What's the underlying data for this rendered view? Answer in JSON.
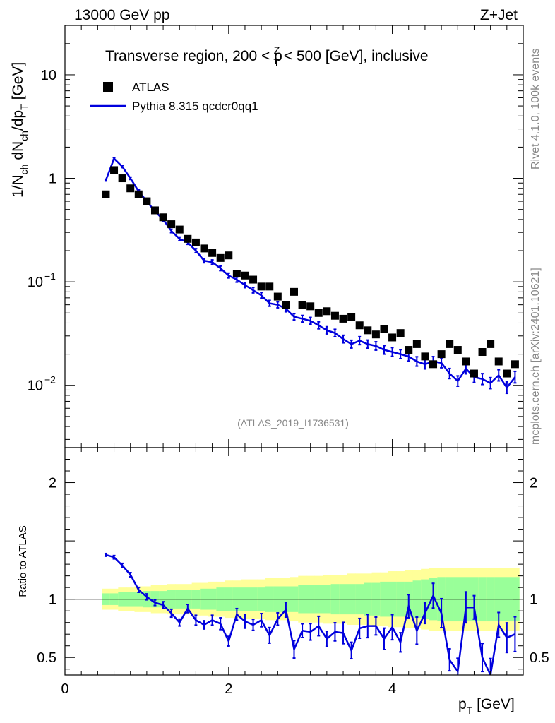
{
  "header": {
    "energy_label": "13000 GeV pp",
    "process_label": "Z+Jet",
    "side_label_rivet": "Rivet 4.1.0,  100k events",
    "side_label_site": "mcplots.cern.ch [arXiv:2401.10621]",
    "analysis_id": "(ATLAS_2019_I1736531)"
  },
  "chart_data": {
    "type": "scatter",
    "title_parts": {
      "lead": "Transverse region, 200 < p",
      "sup": "Z",
      "sub": "T",
      "tail": " < 500 [GeV], inclusive"
    },
    "xlabel": {
      "main": "p",
      "sub": "T",
      "unit": " [GeV]"
    },
    "ylabel": {
      "p1": "1/N",
      "s1": "ch",
      "p2": " dN",
      "s2": "ch",
      "p3": "/dp",
      "s3": "T",
      "p4": " [GeV]"
    },
    "ratio_ylabel": "Ratio to ATLAS",
    "xlim": [
      0,
      5.6
    ],
    "ylim_log": [
      0.0025,
      30
    ],
    "ratio_ylim": [
      0.35,
      2.3
    ],
    "x_ticks": [
      {
        "v": 0,
        "label": "0"
      },
      {
        "v": 2,
        "label": "2"
      },
      {
        "v": 4,
        "label": "4"
      }
    ],
    "y_ticks": [
      {
        "v": 10,
        "label": "10"
      },
      {
        "v": 1,
        "label": "1"
      },
      {
        "v": 0.1,
        "base": "10",
        "exp": "−1"
      },
      {
        "v": 0.01,
        "base": "10",
        "exp": "−2"
      }
    ],
    "ratio_ticks": [
      {
        "v": 2,
        "label": "2"
      },
      {
        "v": 1,
        "label": "1"
      },
      {
        "v": 0.5,
        "label": "0.5"
      }
    ],
    "legend": [
      {
        "label": "ATLAS",
        "kind": "marker",
        "color": "#000000"
      },
      {
        "label": "Pythia 8.315 qcdcr0qq1",
        "kind": "line",
        "color": "#0000dd"
      }
    ],
    "x": [
      0.5,
      0.6,
      0.7,
      0.8,
      0.9,
      1.0,
      1.1,
      1.2,
      1.3,
      1.4,
      1.5,
      1.6,
      1.7,
      1.8,
      1.9,
      2.0,
      2.1,
      2.2,
      2.3,
      2.4,
      2.5,
      2.6,
      2.7,
      2.8,
      2.9,
      3.0,
      3.1,
      3.2,
      3.3,
      3.4,
      3.5,
      3.6,
      3.7,
      3.8,
      3.9,
      4.0,
      4.1,
      4.2,
      4.3,
      4.4,
      4.5,
      4.6,
      4.7,
      4.8,
      4.9,
      5.0,
      5.1,
      5.2,
      5.3,
      5.4,
      5.5
    ],
    "series": [
      {
        "name": "ATLAS",
        "color": "#000000",
        "values": [
          0.7,
          1.2,
          1.0,
          0.8,
          0.7,
          0.6,
          0.49,
          0.42,
          0.36,
          0.32,
          0.26,
          0.24,
          0.21,
          0.19,
          0.17,
          0.18,
          0.12,
          0.115,
          0.105,
          0.09,
          0.09,
          0.072,
          0.06,
          0.08,
          0.06,
          0.058,
          0.05,
          0.052,
          0.047,
          0.044,
          0.046,
          0.038,
          0.034,
          0.031,
          0.035,
          0.029,
          0.032,
          0.022,
          0.025,
          0.019,
          0.016,
          0.02,
          0.025,
          0.022,
          0.017,
          0.013,
          0.021,
          0.025,
          0.017,
          0.013,
          0.016
        ]
      },
      {
        "name": "Pythia 8.315 qcdcr0qq1",
        "color": "#0000dd",
        "values": [
          0.96,
          1.55,
          1.3,
          1.0,
          0.75,
          0.6,
          0.48,
          0.4,
          0.31,
          0.26,
          0.24,
          0.2,
          0.16,
          0.155,
          0.135,
          0.115,
          0.105,
          0.093,
          0.083,
          0.074,
          0.062,
          0.06,
          0.055,
          0.046,
          0.044,
          0.042,
          0.038,
          0.034,
          0.032,
          0.028,
          0.025,
          0.027,
          0.025,
          0.024,
          0.022,
          0.021,
          0.02,
          0.019,
          0.017,
          0.016,
          0.017,
          0.0165,
          0.013,
          0.011,
          0.0145,
          0.012,
          0.0115,
          0.0105,
          0.0125,
          0.0095,
          0.012
        ]
      }
    ],
    "ratio": [
      1.38,
      1.36,
      1.29,
      1.21,
      1.08,
      1.02,
      0.97,
      0.95,
      0.88,
      0.8,
      0.92,
      0.82,
      0.78,
      0.82,
      0.79,
      0.64,
      0.87,
      0.81,
      0.78,
      0.82,
      0.69,
      0.83,
      0.91,
      0.57,
      0.73,
      0.72,
      0.77,
      0.66,
      0.72,
      0.71,
      0.56,
      0.75,
      0.77,
      0.77,
      0.66,
      0.76,
      0.63,
      0.94,
      0.73,
      0.88,
      1.03,
      0.88,
      0.48,
      0.38,
      0.93,
      0.93,
      0.5,
      0.35,
      0.78,
      0.67,
      0.7
    ],
    "band_inner": [
      0.05,
      0.05,
      0.06,
      0.06,
      0.06,
      0.07,
      0.07,
      0.07,
      0.08,
      0.08,
      0.08,
      0.08,
      0.09,
      0.09,
      0.1,
      0.1,
      0.1,
      0.1,
      0.1,
      0.1,
      0.11,
      0.11,
      0.11,
      0.11,
      0.12,
      0.12,
      0.12,
      0.12,
      0.13,
      0.13,
      0.13,
      0.13,
      0.14,
      0.14,
      0.15,
      0.15,
      0.15,
      0.15,
      0.16,
      0.17,
      0.18,
      0.19,
      0.19,
      0.19,
      0.19,
      0.19,
      0.19,
      0.19,
      0.19,
      0.19,
      0.19
    ],
    "band_outer": [
      0.09,
      0.09,
      0.1,
      0.1,
      0.11,
      0.11,
      0.12,
      0.12,
      0.13,
      0.13,
      0.13,
      0.14,
      0.14,
      0.15,
      0.15,
      0.16,
      0.16,
      0.17,
      0.17,
      0.17,
      0.18,
      0.18,
      0.18,
      0.19,
      0.2,
      0.2,
      0.2,
      0.21,
      0.21,
      0.21,
      0.22,
      0.22,
      0.22,
      0.23,
      0.23,
      0.24,
      0.24,
      0.25,
      0.25,
      0.26,
      0.27,
      0.27,
      0.27,
      0.27,
      0.27,
      0.27,
      0.27,
      0.27,
      0.27,
      0.27,
      0.27
    ]
  }
}
